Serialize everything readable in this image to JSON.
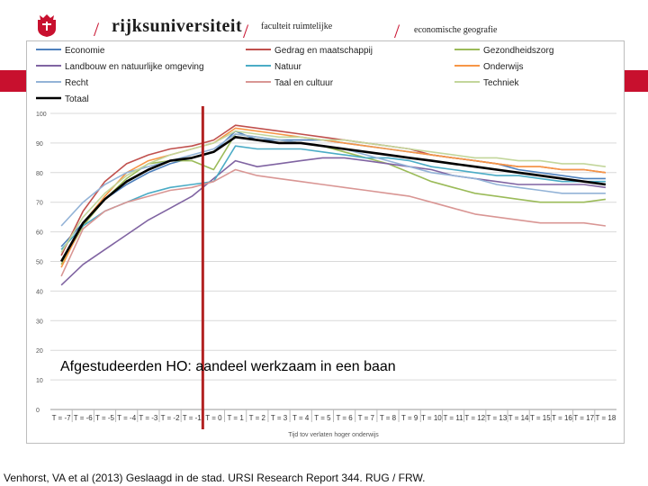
{
  "header": {
    "university": "rijksuniversiteit",
    "faculty": "faculteit ruimtelijke",
    "department": "economische geografie"
  },
  "colors": {
    "brand_red": "#c8102e",
    "marker_line": "#b22222"
  },
  "source": "Venhorst, VA et al (2013) Geslaagd in de stad. URSI Research Report 344. RUG / FRW.",
  "chart_data": {
    "type": "line",
    "annotation": "Afgestudeerden HO: aandeel werkzaam in een baan",
    "xlabel": "Tijd tov verlaten hoger onderwijs",
    "ylabel": "",
    "ylim": [
      0,
      100
    ],
    "yticks": [
      0,
      10,
      20,
      30,
      40,
      50,
      60,
      70,
      80,
      90,
      100
    ],
    "grid": true,
    "legend_position": "top",
    "vertical_marker_at": "T = 0",
    "categories": [
      "T = -7",
      "T = -6",
      "T = -5",
      "T = -4",
      "T = -3",
      "T = -2",
      "T = -1",
      "T = 0",
      "T = 1",
      "T = 2",
      "T = 3",
      "T = 4",
      "T = 5",
      "T = 6",
      "T = 7",
      "T = 8",
      "T = 9",
      "T = 10",
      "T = 11",
      "T = 12",
      "T = 13",
      "T = 14",
      "T = 15",
      "T = 16",
      "T = 17",
      "T = 18"
    ],
    "series": [
      {
        "name": "Economie",
        "color": "#4f81bd",
        "values": [
          55,
          63,
          71,
          76,
          80,
          83,
          85,
          87,
          94,
          91,
          91,
          91,
          91,
          90,
          89,
          88,
          87,
          86,
          85,
          84,
          83,
          81,
          80,
          79,
          78,
          78
        ]
      },
      {
        "name": "Gedrag en maatschappij",
        "color": "#c0504d",
        "values": [
          52,
          67,
          77,
          83,
          86,
          88,
          89,
          91,
          96,
          95,
          94,
          93,
          92,
          91,
          90,
          89,
          88,
          86,
          85,
          84,
          83,
          82,
          82,
          81,
          81,
          80
        ]
      },
      {
        "name": "Gezondheidszorg",
        "color": "#9bbb59",
        "values": [
          49,
          62,
          71,
          78,
          83,
          84,
          84,
          81,
          93,
          92,
          91,
          90,
          89,
          87,
          85,
          83,
          80,
          77,
          75,
          73,
          72,
          71,
          70,
          70,
          70,
          71
        ]
      },
      {
        "name": "Landbouw en natuurlijke omgeving",
        "color": "#8064a2",
        "values": [
          42,
          49,
          54,
          59,
          64,
          68,
          72,
          78,
          84,
          82,
          83,
          84,
          85,
          85,
          84,
          83,
          82,
          81,
          79,
          78,
          77,
          76,
          76,
          76,
          76,
          75
        ]
      },
      {
        "name": "Natuur",
        "color": "#4bacc6",
        "values": [
          54,
          62,
          67,
          70,
          73,
          75,
          76,
          77,
          89,
          88,
          88,
          88,
          87,
          86,
          85,
          85,
          84,
          82,
          81,
          80,
          79,
          79,
          78,
          77,
          77,
          77
        ]
      },
      {
        "name": "Onderwijs",
        "color": "#f79646",
        "values": [
          48,
          63,
          72,
          80,
          84,
          86,
          88,
          90,
          95,
          94,
          93,
          92,
          91,
          90,
          89,
          88,
          87,
          86,
          85,
          84,
          83,
          82,
          82,
          81,
          81,
          80
        ]
      },
      {
        "name": "Recht",
        "color": "#93b3d7",
        "values": [
          62,
          70,
          76,
          80,
          82,
          84,
          86,
          88,
          93,
          92,
          91,
          90,
          89,
          88,
          86,
          84,
          82,
          80,
          79,
          78,
          76,
          75,
          74,
          73,
          73,
          73
        ]
      },
      {
        "name": "Taal en cultuur",
        "color": "#d99694",
        "values": [
          45,
          61,
          67,
          70,
          72,
          74,
          75,
          77,
          81,
          79,
          78,
          77,
          76,
          75,
          74,
          73,
          72,
          70,
          68,
          66,
          65,
          64,
          63,
          63,
          63,
          62
        ]
      },
      {
        "name": "Techniek",
        "color": "#c3d69b",
        "values": [
          53,
          65,
          73,
          79,
          83,
          86,
          88,
          90,
          94,
          93,
          92,
          92,
          91,
          91,
          90,
          89,
          88,
          87,
          86,
          85,
          85,
          84,
          84,
          83,
          83,
          82
        ]
      },
      {
        "name": "Totaal",
        "color": "#000000",
        "bold": true,
        "values": [
          50,
          63,
          71,
          77,
          81,
          84,
          85,
          87,
          92,
          91,
          90,
          90,
          89,
          88,
          87,
          86,
          85,
          84,
          83,
          82,
          81,
          80,
          79,
          78,
          77,
          76
        ]
      }
    ]
  }
}
